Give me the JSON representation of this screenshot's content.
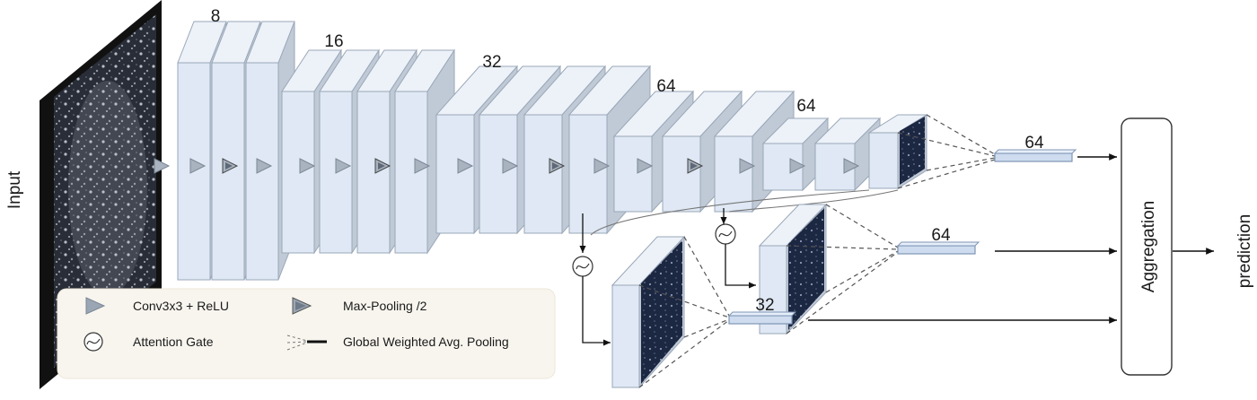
{
  "input_label": "Input",
  "output_label": "prediction",
  "aggregation_label": "Aggregation",
  "channel_labels": [
    "8",
    "16",
    "32",
    "64",
    "64"
  ],
  "branch_labels": [
    "64",
    "64",
    "32"
  ],
  "legend": {
    "conv": "Conv3x3 + ReLU",
    "maxpool": "Max-Pooling /2",
    "attention": "Attention Gate",
    "gwap": "Global Weighted Avg. Pooling"
  },
  "colors": {
    "layer_front": "#dfe8f4",
    "layer_top": "#edf2f9",
    "layer_side": "#c0cad6",
    "legend_bg": "#f8f5ee"
  }
}
